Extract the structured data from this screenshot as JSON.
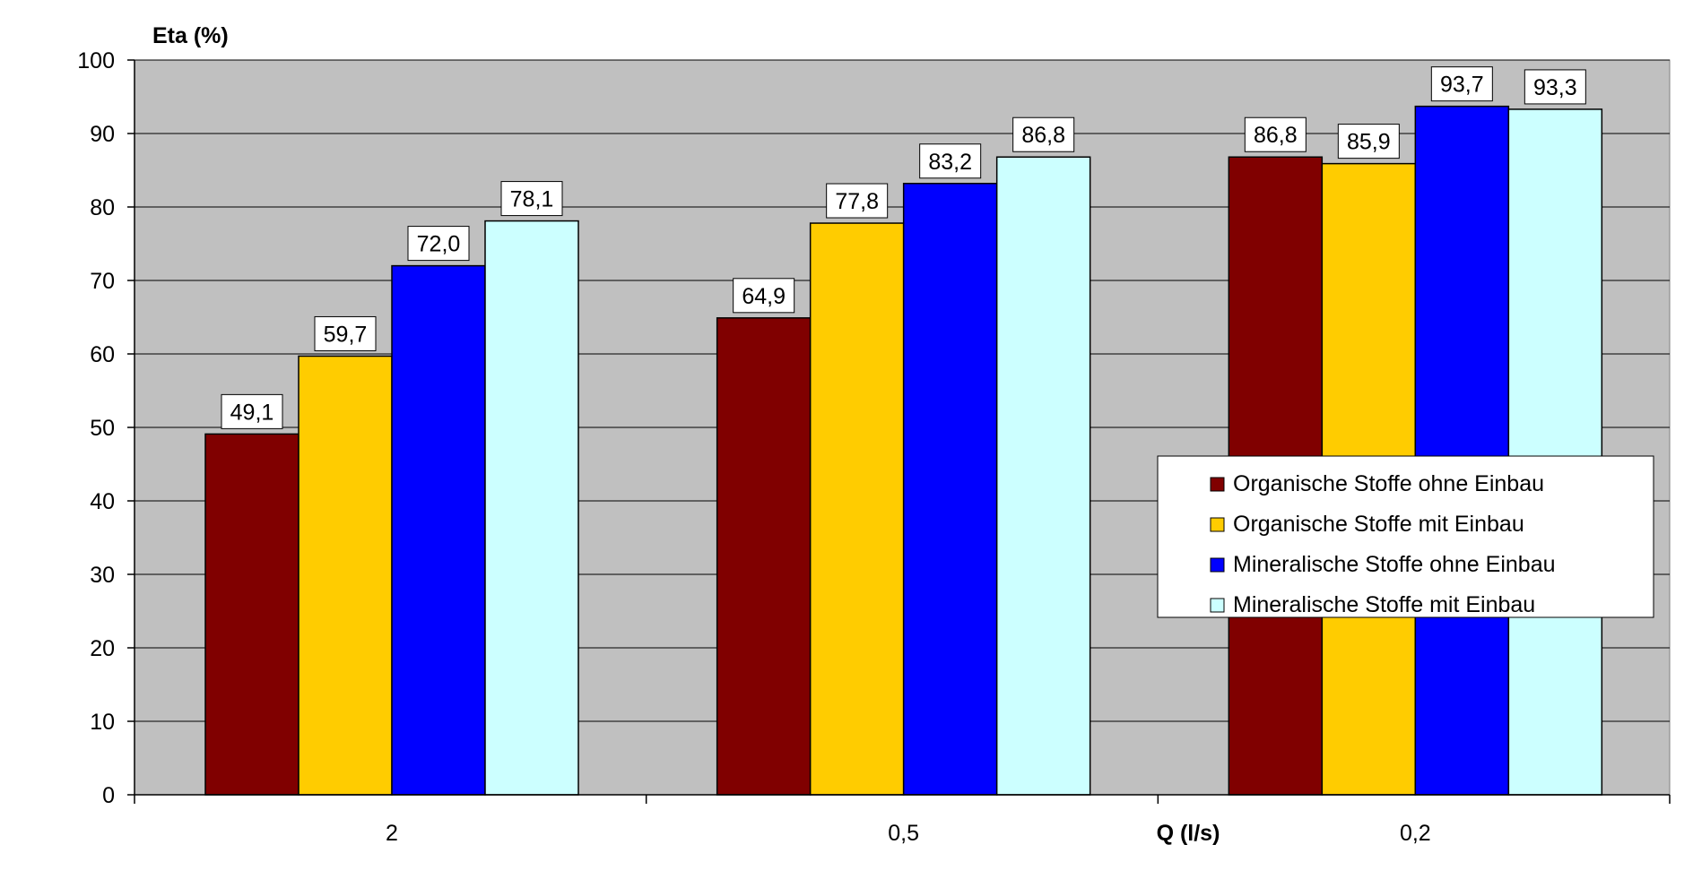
{
  "chart_data": {
    "type": "bar",
    "ylabel": "Eta (%)",
    "xlabel": "Q (l/s)",
    "categories": [
      "2",
      "0,5",
      "0,2"
    ],
    "ylim": [
      0,
      100
    ],
    "yticks": [
      0,
      10,
      20,
      30,
      40,
      50,
      60,
      70,
      80,
      90,
      100
    ],
    "grid": true,
    "legend_position": "right",
    "series": [
      {
        "name": "Organische Stoffe ohne Einbau",
        "color": "#800000",
        "values": [
          49.1,
          64.9,
          86.8
        ],
        "labels": [
          "49,1",
          "64,9",
          "86,8"
        ]
      },
      {
        "name": "Organische Stoffe mit Einbau",
        "color": "#FFCC00",
        "values": [
          59.7,
          77.8,
          85.9
        ],
        "labels": [
          "59,7",
          "77,8",
          "85,9"
        ]
      },
      {
        "name": "Mineralische Stoffe ohne Einbau",
        "color": "#0000FF",
        "values": [
          72.0,
          83.2,
          93.7
        ],
        "labels": [
          "72,0",
          "83,2",
          "93,7"
        ]
      },
      {
        "name": "Mineralische Stoffe mit Einbau",
        "color": "#CCFFFF",
        "values": [
          78.1,
          86.8,
          93.3
        ],
        "labels": [
          "78,1",
          "86,8",
          "93,3"
        ]
      }
    ],
    "plot_background": "#C0C0C0"
  }
}
